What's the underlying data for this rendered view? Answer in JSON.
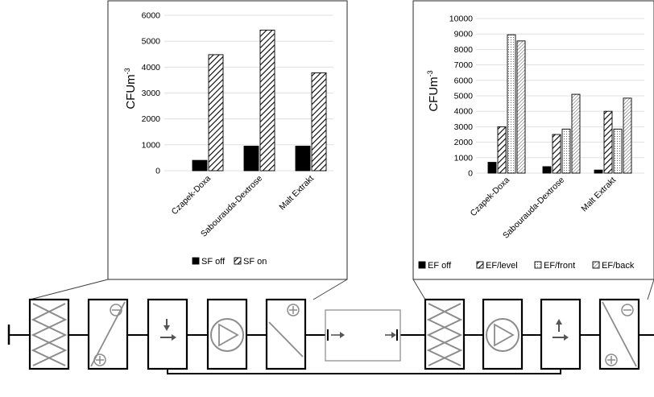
{
  "chart_data": [
    {
      "type": "bar",
      "ylabel": "CFUm",
      "ylabel_sup": "-3",
      "ylim": [
        0,
        6000
      ],
      "yticks": [
        "0",
        "1000",
        "2000",
        "3000",
        "4000",
        "5000",
        "6000"
      ],
      "categories": [
        "Czapek-Doxa",
        "Sabourauda-Dextrose",
        "Malt Extrakt"
      ],
      "series": [
        {
          "name": "SF off",
          "values": [
            400,
            950,
            950
          ],
          "pattern": "solid"
        },
        {
          "name": "SF on",
          "values": [
            4480,
            5430,
            3780
          ],
          "pattern": "hatch-wide"
        }
      ],
      "legend_position": "bottom",
      "grid": true
    },
    {
      "type": "bar",
      "ylabel": "CFUm",
      "ylabel_sup": "-3",
      "ylim": [
        0,
        10000
      ],
      "yticks": [
        "0",
        "1000",
        "2000",
        "3000",
        "4000",
        "5000",
        "6000",
        "7000",
        "8000",
        "9000",
        "10000"
      ],
      "categories": [
        "Czapek-Doxa",
        "Sabourauda-Dextrose",
        "Malt Extrakt"
      ],
      "series": [
        {
          "name": "EF off",
          "values": [
            700,
            420,
            200
          ],
          "pattern": "solid"
        },
        {
          "name": "EF/level",
          "values": [
            3000,
            2500,
            4000
          ],
          "pattern": "hatch-wide"
        },
        {
          "name": "EF/front",
          "values": [
            8950,
            2850,
            2850
          ],
          "pattern": "dots"
        },
        {
          "name": "EF/back",
          "values": [
            8550,
            5100,
            4850
          ],
          "pattern": "hatch-fine"
        }
      ],
      "legend_position": "bottom",
      "grid": true
    }
  ],
  "colors": {
    "frame": "#2a2a2a",
    "component_gray": "#8c8c8c",
    "grid": "#d9d9d9"
  }
}
